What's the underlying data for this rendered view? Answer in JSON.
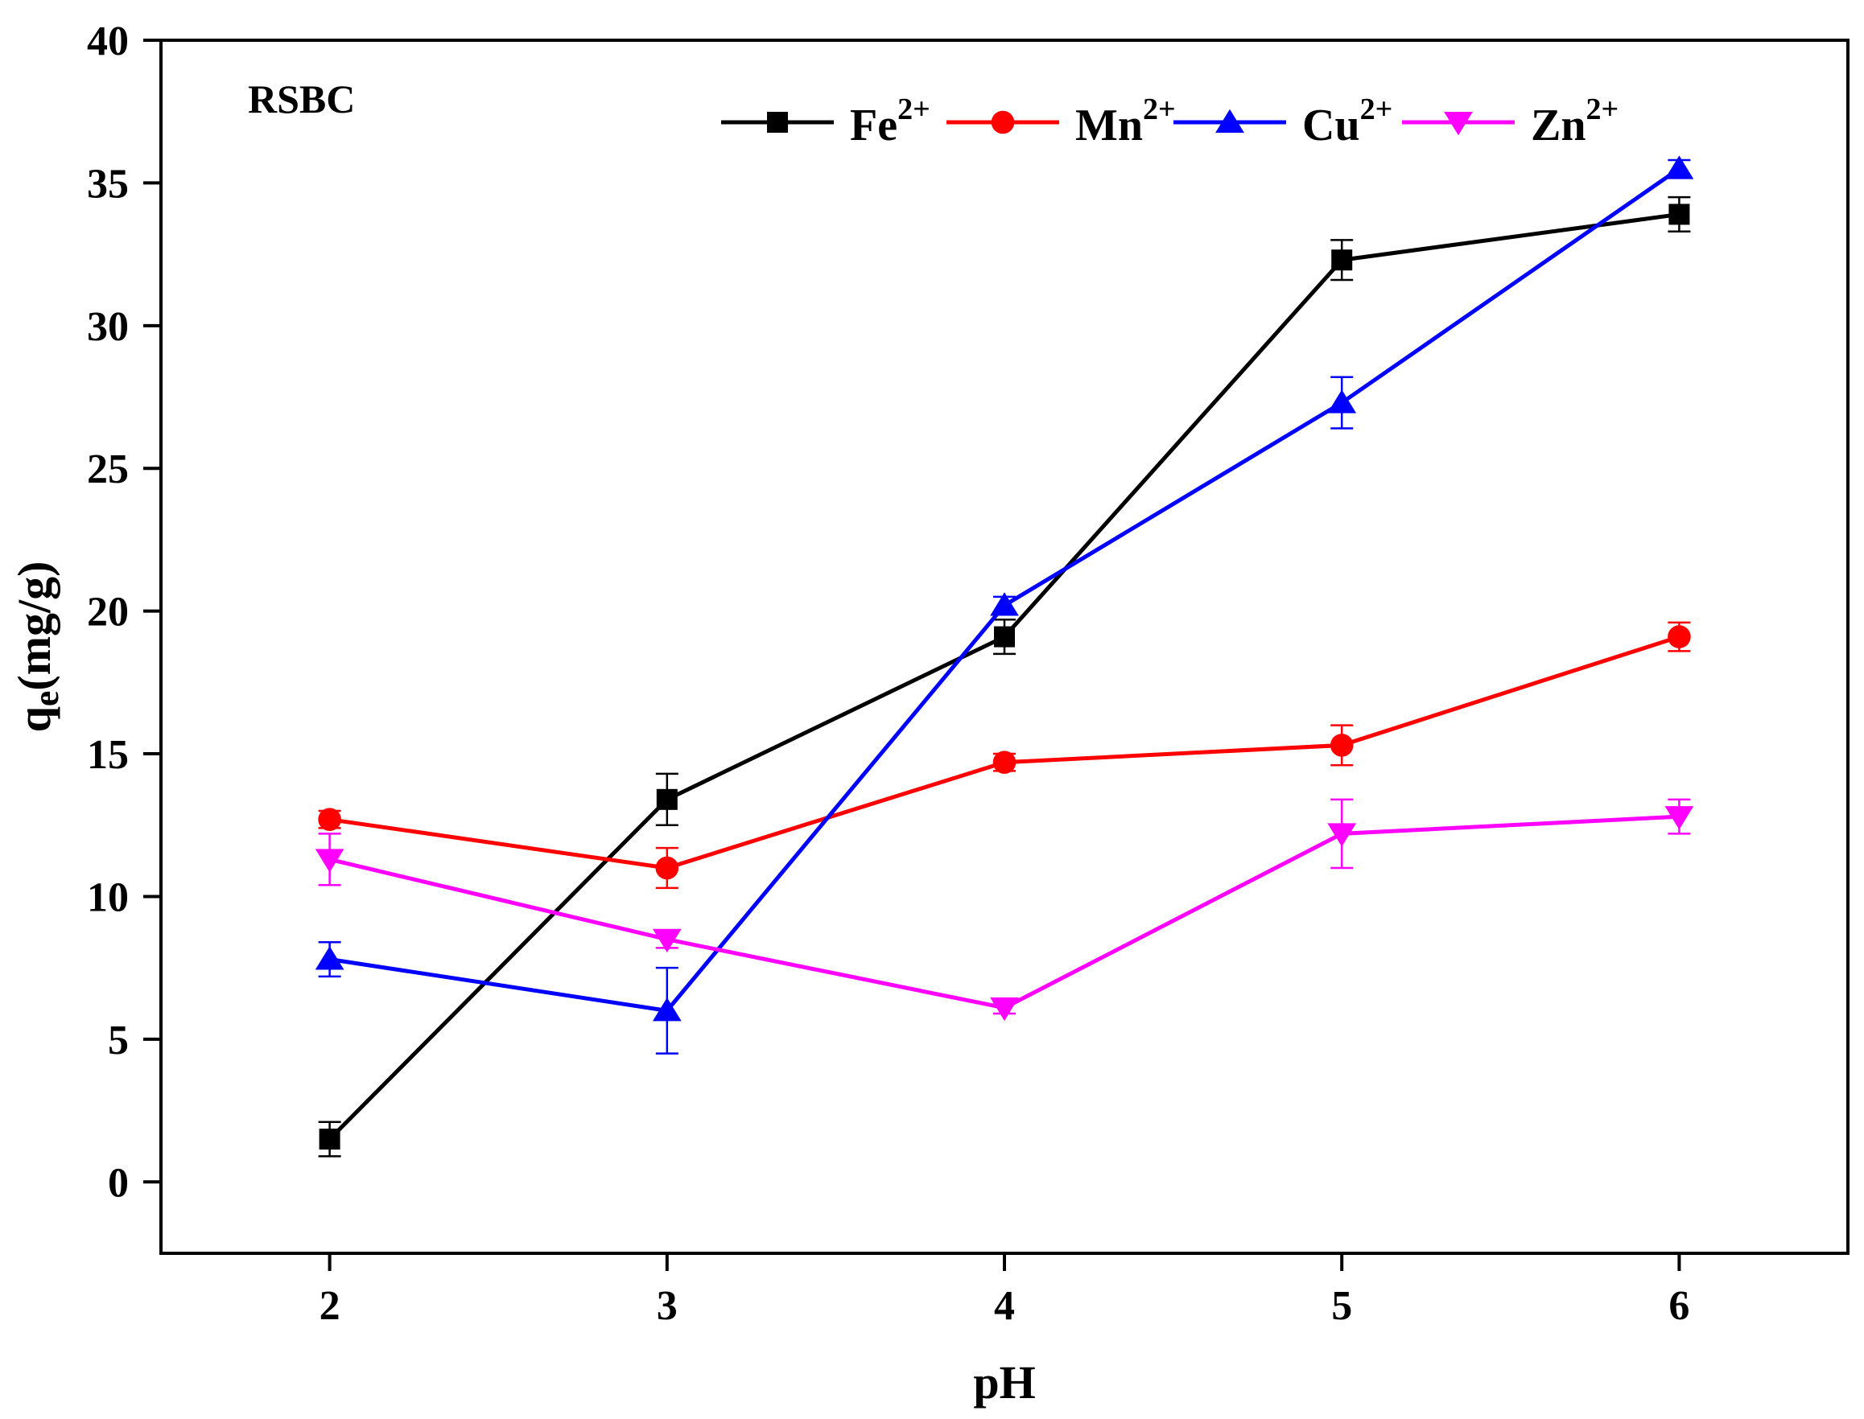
{
  "chart_data": {
    "type": "line",
    "title": "",
    "panel_label": "RSBC",
    "xlabel": "pH",
    "ylabel": {
      "main": "q",
      "sub": "e",
      "unit": "(mg/g)"
    },
    "x": [
      2,
      3,
      4,
      5,
      6
    ],
    "xlim": [
      1.5,
      6.5
    ],
    "ylim": [
      -2.5,
      40
    ],
    "x_ticks": [
      "2",
      "3",
      "4",
      "5",
      "6"
    ],
    "y_ticks": [
      "0",
      "5",
      "10",
      "15",
      "20",
      "25",
      "30",
      "35",
      "40"
    ],
    "legend_position": "top",
    "series": [
      {
        "name": "Fe",
        "charge": "2+",
        "color": "#000000",
        "marker": "square",
        "values": [
          1.5,
          13.4,
          19.1,
          32.3,
          33.9
        ],
        "errors": [
          0.6,
          0.9,
          0.6,
          0.7,
          0.6
        ]
      },
      {
        "name": "Mn",
        "charge": "2+",
        "color": "#ff0000",
        "marker": "circle",
        "values": [
          12.7,
          11.0,
          14.7,
          15.3,
          19.1
        ],
        "errors": [
          0.3,
          0.7,
          0.3,
          0.7,
          0.5
        ]
      },
      {
        "name": "Cu",
        "charge": "2+",
        "color": "#0000ff",
        "marker": "triangle-up",
        "values": [
          7.8,
          6.0,
          20.2,
          27.3,
          35.5
        ],
        "errors": [
          0.6,
          1.5,
          0.3,
          0.9,
          0.3
        ]
      },
      {
        "name": "Zn",
        "charge": "2+",
        "color": "#ff00ff",
        "marker": "triangle-down",
        "values": [
          11.3,
          8.5,
          6.1,
          12.2,
          12.8
        ],
        "errors": [
          0.9,
          0.3,
          0.2,
          1.2,
          0.6
        ]
      }
    ]
  }
}
